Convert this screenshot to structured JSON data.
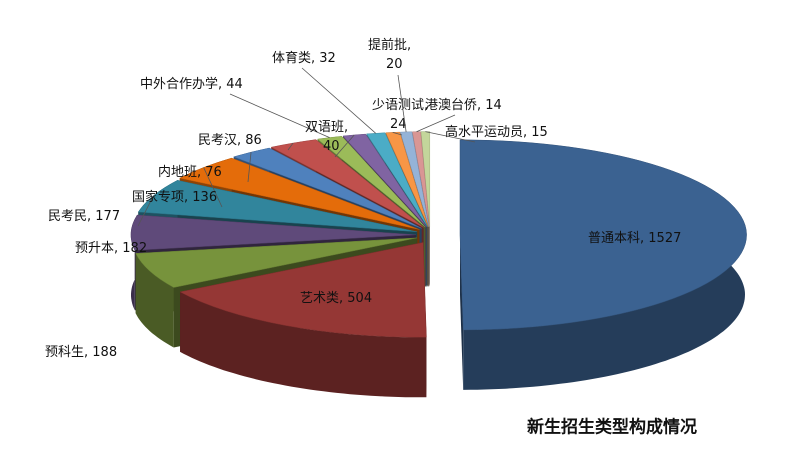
{
  "chart_data": {
    "type": "pie",
    "title": "新生招生类型构成情况",
    "label_separator": ", ",
    "categories": [
      "普通本科",
      "艺术类",
      "预科生",
      "预升本",
      "民考民",
      "国家专项",
      "内地班",
      "民考汉",
      "中外合作办学",
      "双语班",
      "体育类",
      "少语测试",
      "提前批",
      "港澳台侨",
      "高水平运动员"
    ],
    "values": [
      1527,
      504,
      188,
      182,
      177,
      136,
      76,
      86,
      44,
      40,
      32,
      24,
      20,
      14,
      15
    ],
    "colors": [
      "#3b6291",
      "#953735",
      "#77933c",
      "#5f4a7a",
      "#31859c",
      "#e46c0a",
      "#4f81bd",
      "#c0504d",
      "#9bbb59",
      "#8064a2",
      "#4bacc6",
      "#f79646",
      "#95b3d7",
      "#d99694",
      "#c3d69b"
    ]
  }
}
